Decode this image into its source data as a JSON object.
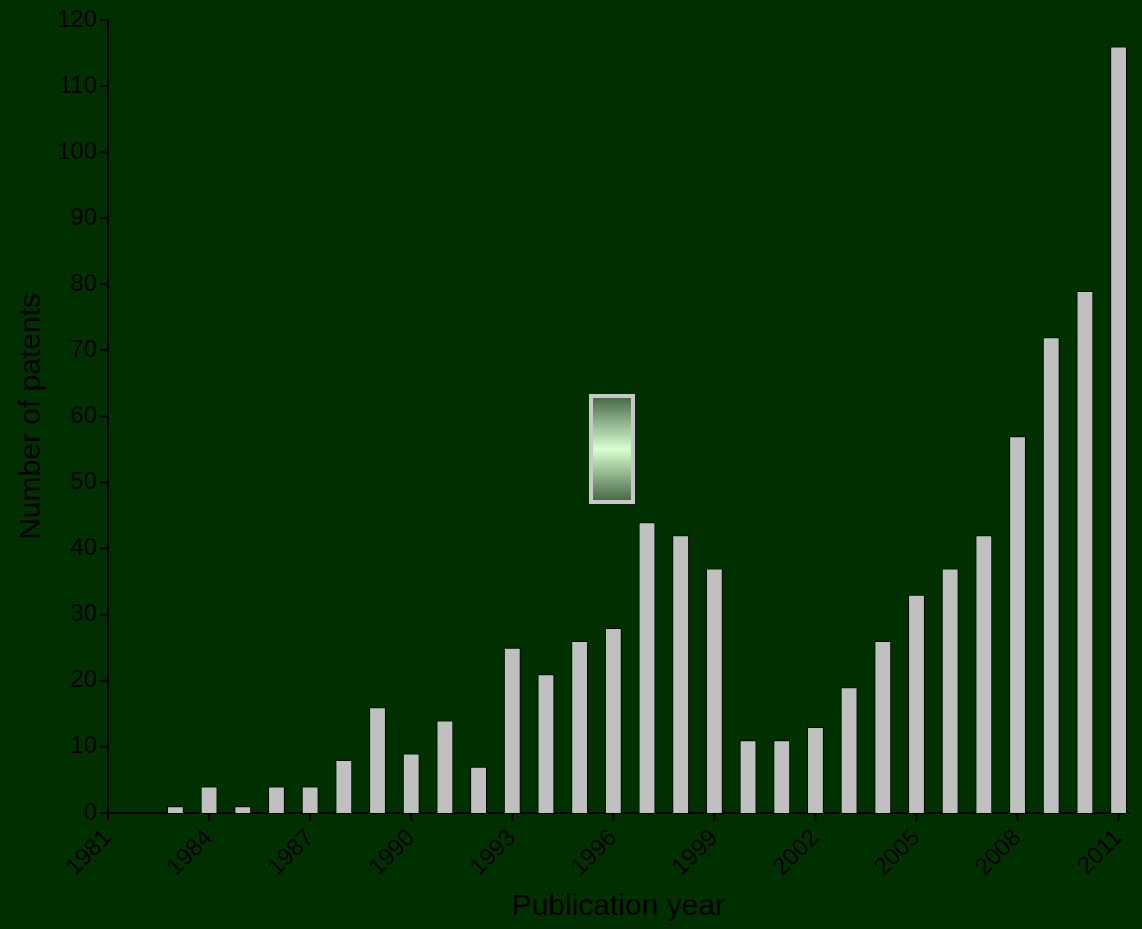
{
  "chart_data": {
    "type": "bar",
    "xlabel": "Publication year",
    "ylabel": "Number of patents",
    "x": [
      1983,
      1984,
      1985,
      1986,
      1987,
      1988,
      1989,
      1990,
      1991,
      1992,
      1993,
      1994,
      1995,
      1996,
      1997,
      1998,
      1999,
      2000,
      2001,
      2002,
      2003,
      2004,
      2005,
      2006,
      2007,
      2008,
      2009,
      2010,
      2011
    ],
    "values": [
      1,
      4,
      1,
      4,
      4,
      8,
      16,
      9,
      14,
      7,
      25,
      21,
      26,
      28,
      44,
      42,
      37,
      11,
      11,
      13,
      19,
      26,
      33,
      37,
      42,
      57,
      72,
      79,
      116
    ],
    "color": "#c0c0c0",
    "xlim": [
      1981,
      2011.3
    ],
    "xticks": [
      1981,
      1984,
      1987,
      1990,
      1993,
      1996,
      1999,
      2002,
      2005,
      2008,
      2011
    ],
    "ylim": [
      0,
      120
    ],
    "yticks": [
      0,
      10,
      20,
      30,
      40,
      50,
      60,
      70,
      80,
      90,
      100,
      110,
      120
    ],
    "grid": false,
    "legend": false
  }
}
